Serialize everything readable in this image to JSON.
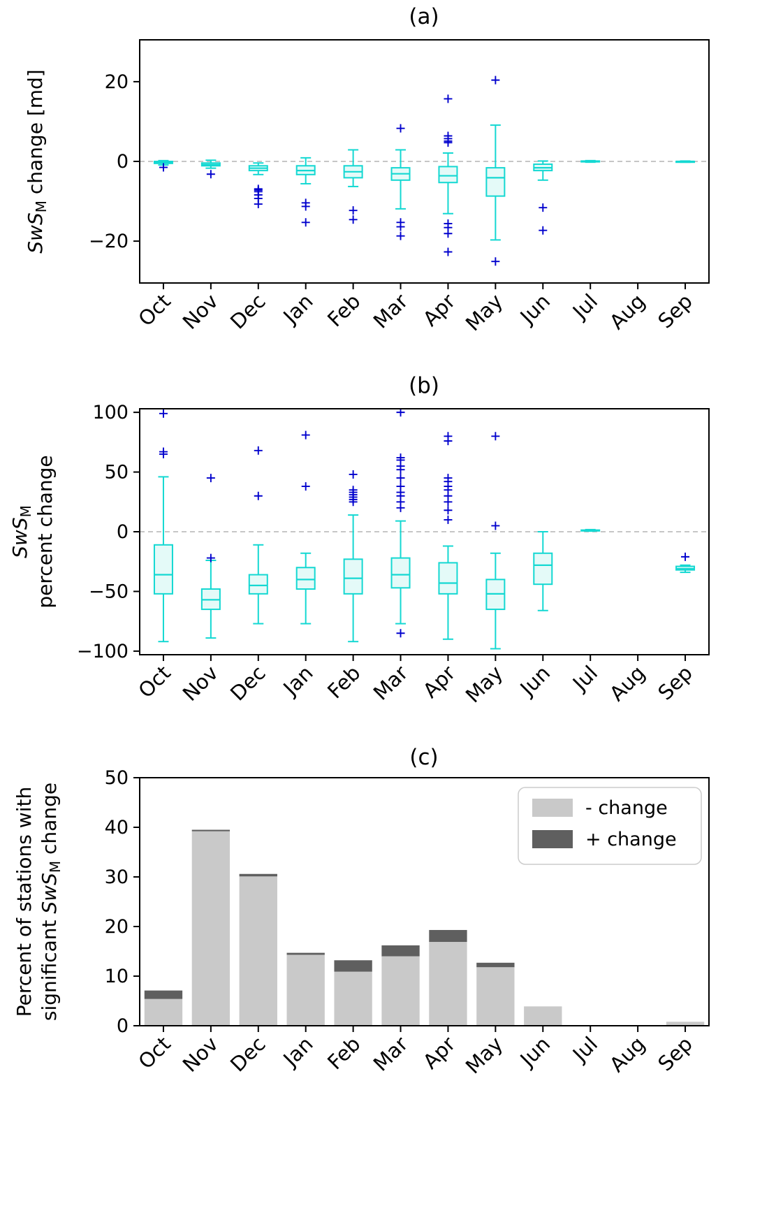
{
  "figure": {
    "titles": [
      "(a)",
      "(b)",
      "(c)"
    ]
  },
  "colors": {
    "box_edge": "#14d8d2",
    "box_fill": "#e4faf8",
    "flier": "#0000cd",
    "zero_line": "#b3b3b3",
    "bar_minus": "#c9c9c9",
    "bar_plus": "#5f5f5f",
    "axis": "#000000",
    "legend_border": "#cccccc"
  },
  "chart_data": [
    {
      "type": "box",
      "title": "(a)",
      "ylabel": "SwS_M change [md]",
      "ylabel_lines": [
        [
          {
            "t": "SwS",
            "italic": true
          },
          {
            "t": "M",
            "sub": true
          },
          {
            "t": " change [md]"
          }
        ]
      ],
      "categories": [
        "Oct",
        "Nov",
        "Dec",
        "Jan",
        "Feb",
        "Mar",
        "Apr",
        "May",
        "Jun",
        "Jul",
        "Aug",
        "Sep"
      ],
      "ylim": [
        -30.5,
        30.5
      ],
      "yticks": [
        -20,
        0,
        20
      ],
      "ytick_labels": [
        "−20",
        "0",
        "20"
      ],
      "zero_line": true,
      "grid": false,
      "boxes": [
        {
          "whislo": -0.9,
          "q1": -0.5,
          "med": -0.2,
          "q3": 0.0,
          "whishi": 0.2,
          "fliers": [
            -1.5
          ]
        },
        {
          "whislo": -1.7,
          "q1": -1.1,
          "med": -0.8,
          "q3": -0.4,
          "whishi": 0.3,
          "fliers": [
            -3.2
          ]
        },
        {
          "whislo": -3.3,
          "q1": -2.3,
          "med": -1.7,
          "q3": -1.1,
          "whishi": -0.4,
          "fliers": [
            -6.9,
            -7.2,
            -7.6,
            -8.4,
            -9.3,
            -10.7
          ]
        },
        {
          "whislo": -5.6,
          "q1": -3.3,
          "med": -2.3,
          "q3": -1.1,
          "whishi": 0.9,
          "fliers": [
            -10.4,
            -11.3,
            -15.3
          ]
        },
        {
          "whislo": -6.3,
          "q1": -4.1,
          "med": -2.6,
          "q3": -1.1,
          "whishi": 2.9,
          "fliers": [
            -12.3,
            -14.6
          ]
        },
        {
          "whislo": -11.9,
          "q1": -4.7,
          "med": -3.1,
          "q3": -1.6,
          "whishi": 2.9,
          "fliers": [
            8.3,
            -15.3,
            -16.4,
            -18.7
          ]
        },
        {
          "whislo": -13.1,
          "q1": -5.3,
          "med": -3.6,
          "q3": -1.3,
          "whishi": 2.1,
          "fliers": [
            15.7,
            6.4,
            5.7,
            5.1,
            4.7,
            -15.6,
            -16.6,
            -18.1,
            -22.7
          ]
        },
        {
          "whislo": -19.7,
          "q1": -8.7,
          "med": -4.1,
          "q3": -1.6,
          "whishi": 9.1,
          "fliers": [
            20.4,
            -25.1
          ]
        },
        {
          "whislo": -4.7,
          "q1": -2.3,
          "med": -1.6,
          "q3": -0.7,
          "whishi": 0.1,
          "fliers": [
            -11.6,
            -17.3
          ]
        },
        {
          "whislo": -0.2,
          "q1": -0.1,
          "med": 0.0,
          "q3": 0.1,
          "whishi": 0.2,
          "fliers": []
        },
        null,
        {
          "whislo": -0.2,
          "q1": -0.1,
          "med": 0.0,
          "q3": 0.0,
          "whishi": 0.1,
          "fliers": []
        }
      ]
    },
    {
      "type": "box",
      "title": "(b)",
      "ylabel": "SwS_M percent change",
      "ylabel_lines": [
        [
          {
            "t": "SwS",
            "italic": true
          },
          {
            "t": "M",
            "sub": true
          }
        ],
        [
          {
            "t": "percent change"
          }
        ]
      ],
      "categories": [
        "Oct",
        "Nov",
        "Dec",
        "Jan",
        "Feb",
        "Mar",
        "Apr",
        "May",
        "Jun",
        "Jul",
        "Aug",
        "Sep"
      ],
      "ylim": [
        -103,
        103
      ],
      "yticks": [
        -100,
        -50,
        0,
        50,
        100
      ],
      "ytick_labels": [
        "−100",
        "−50",
        "0",
        "50",
        "100"
      ],
      "zero_line": true,
      "grid": false,
      "boxes": [
        {
          "whislo": -92,
          "q1": -52,
          "med": -36,
          "q3": -11,
          "whishi": 46,
          "fliers": [
            65,
            67,
            99
          ]
        },
        {
          "whislo": -89,
          "q1": -65,
          "med": -57,
          "q3": -48,
          "whishi": -24,
          "fliers": [
            45,
            -22
          ]
        },
        {
          "whislo": -77,
          "q1": -52,
          "med": -45,
          "q3": -36,
          "whishi": -11,
          "fliers": [
            30,
            68
          ]
        },
        {
          "whislo": -77,
          "q1": -48,
          "med": -40,
          "q3": -30,
          "whishi": -18,
          "fliers": [
            38,
            81
          ]
        },
        {
          "whislo": -92,
          "q1": -52,
          "med": -39,
          "q3": -23,
          "whishi": 14,
          "fliers": [
            25,
            27,
            29,
            31,
            33,
            35,
            48
          ]
        },
        {
          "whislo": -77,
          "q1": -47,
          "med": -36,
          "q3": -22,
          "whishi": 9,
          "fliers": [
            100,
            62,
            60,
            55,
            52,
            45,
            38,
            33,
            30,
            25,
            20,
            -85
          ]
        },
        {
          "whislo": -90,
          "q1": -52,
          "med": -43,
          "q3": -26,
          "whishi": -12,
          "fliers": [
            80,
            76,
            45,
            42,
            38,
            35,
            30,
            25,
            18,
            10
          ]
        },
        {
          "whislo": -98,
          "q1": -65,
          "med": -52,
          "q3": -40,
          "whishi": -18,
          "fliers": [
            80,
            5
          ]
        },
        {
          "whislo": -66,
          "q1": -44,
          "med": -28,
          "q3": -18,
          "whishi": 0,
          "fliers": []
        },
        {
          "whislo": 0.5,
          "q1": 0.8,
          "med": 1.0,
          "q3": 1.4,
          "whishi": 1.8,
          "fliers": []
        },
        null,
        {
          "whislo": -34,
          "q1": -32,
          "med": -31,
          "q3": -29,
          "whishi": -28,
          "fliers": [
            -21
          ]
        }
      ]
    },
    {
      "type": "bar",
      "title": "(c)",
      "ylabel": "Percent of stations with significant SwS_M change",
      "ylabel_lines": [
        [
          {
            "t": "Percent of stations with"
          }
        ],
        [
          {
            "t": "significant "
          },
          {
            "t": "SwS",
            "italic": true
          },
          {
            "t": "M",
            "sub": true
          },
          {
            "t": " change"
          }
        ]
      ],
      "categories": [
        "Oct",
        "Nov",
        "Dec",
        "Jan",
        "Feb",
        "Mar",
        "Apr",
        "May",
        "Jun",
        "Jul",
        "Aug",
        "Sep"
      ],
      "ylim": [
        0,
        50
      ],
      "yticks": [
        0,
        10,
        20,
        30,
        40,
        50
      ],
      "ytick_labels": [
        "0",
        "10",
        "20",
        "30",
        "40",
        "50"
      ],
      "zero_line": false,
      "grid": false,
      "stacked": true,
      "series": [
        {
          "name": "- change",
          "values": [
            5.4,
            39.2,
            30.1,
            14.3,
            10.9,
            14.0,
            16.9,
            11.8,
            3.9,
            0,
            0,
            0.8
          ]
        },
        {
          "name": "+ change",
          "values": [
            1.7,
            0.3,
            0.5,
            0.4,
            2.3,
            2.2,
            2.4,
            0.9,
            0,
            0,
            0,
            0
          ]
        }
      ],
      "legend": {
        "position": "upper right",
        "entries": [
          {
            "label": "- change",
            "color": "#c9c9c9"
          },
          {
            "label": "+ change",
            "color": "#5f5f5f"
          }
        ]
      }
    }
  ]
}
